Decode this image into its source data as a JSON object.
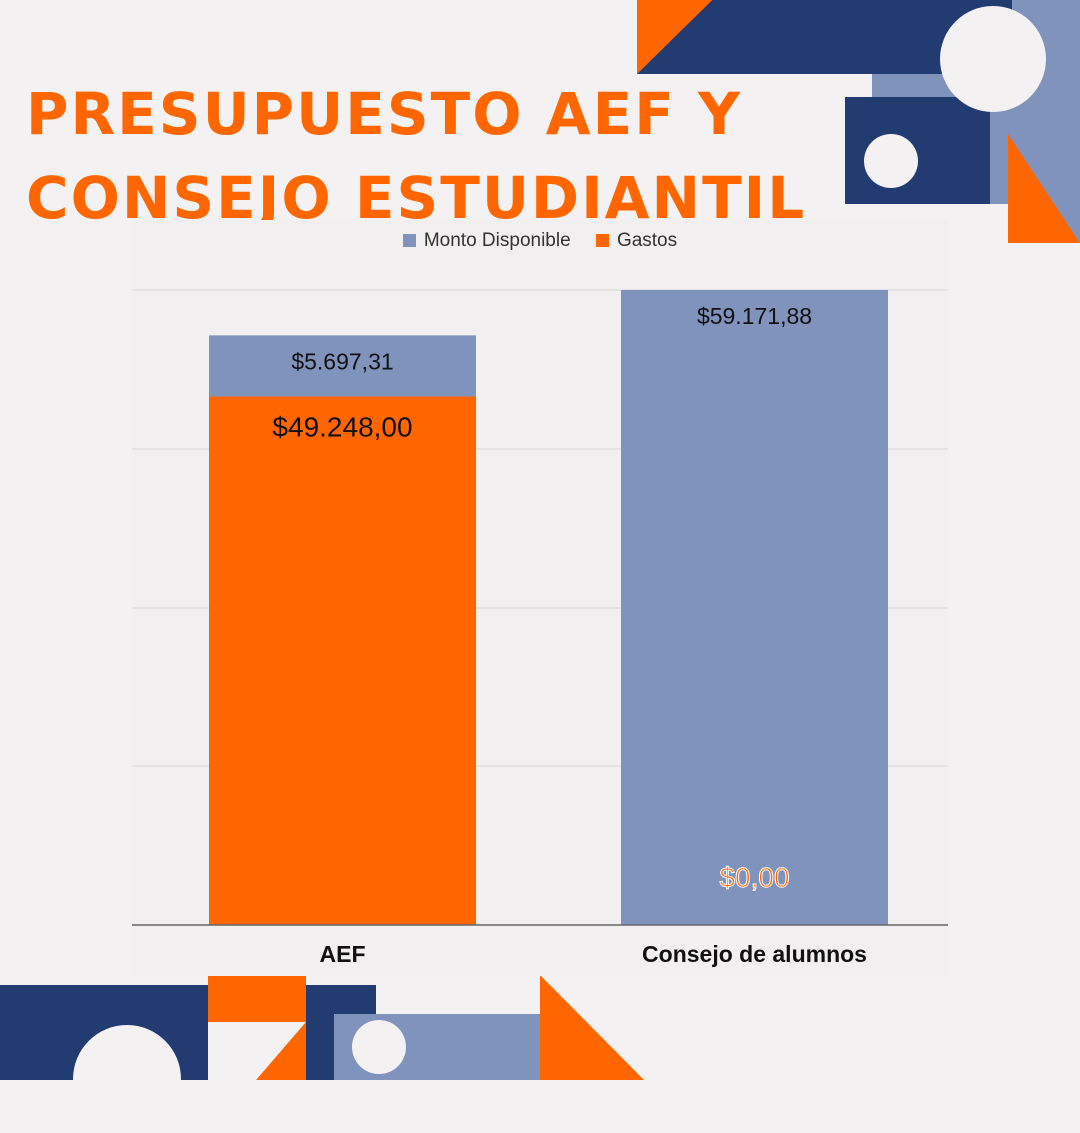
{
  "title": {
    "line1": "Presupuesto AEF y",
    "line2": "Consejo Estudiantil"
  },
  "colors": {
    "navy": "#223b70",
    "orange": "#ff6600",
    "periwinkle": "#8093bd",
    "background": "#f3f1f2"
  },
  "chart_data": {
    "type": "bar",
    "stacked": true,
    "title": "Presupuesto AEF y Consejo Estudiantil",
    "categories": [
      "AEF",
      "Consejo de alumnos"
    ],
    "series": [
      {
        "name": "Monto Disponible",
        "values": [
          5697.31,
          59171.88
        ],
        "labels": [
          "$5.697,31",
          "$59.171,88"
        ],
        "color": "#8093bd"
      },
      {
        "name": "Gastos",
        "values": [
          49248.0,
          0.0
        ],
        "labels": [
          "$49.248,00",
          "$0,00"
        ],
        "color": "#ff6600"
      }
    ],
    "legend_position": "top",
    "grid": true,
    "ylim": [
      0,
      59171.88
    ]
  }
}
